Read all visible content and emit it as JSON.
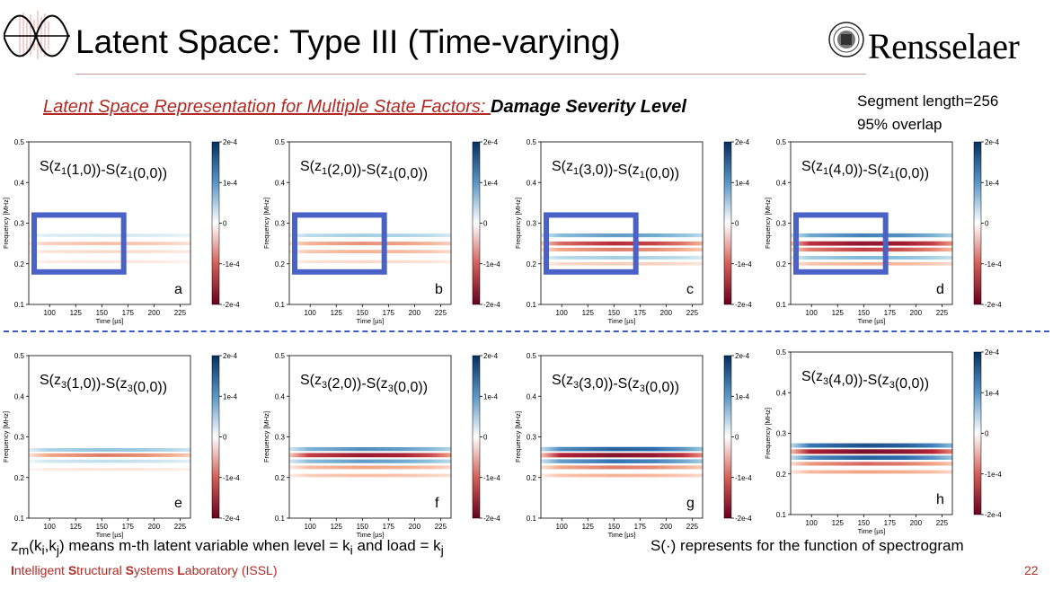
{
  "slide": {
    "title": "Latent Space: Type III (Time-varying)",
    "institution": "Rensselaer",
    "subtitle_lead": "Latent Space Representation for Multiple State Factors: ",
    "subtitle_emph": "Damage Severity Level",
    "segment_length": "Segment length=256",
    "overlap": "95% overlap",
    "footnote_left": "z_m(k_i,k_j) means m-th latent variable when level = k_i and load = k_j",
    "footnote_right": "S(·) represents for the function of spectrogram",
    "lab_name_parts": [
      {
        "bold": "I",
        "rest": "ntelligent "
      },
      {
        "bold": "S",
        "rest": "tructural "
      },
      {
        "bold": "S",
        "rest": "ystems "
      },
      {
        "bold": "L",
        "rest": "aboratory (ISSL)"
      }
    ],
    "page_number": "22"
  },
  "axes": {
    "xlabel": "Time [µs]",
    "ylabel": "Frequency [MHz]",
    "xticks": [
      "100",
      "125",
      "150",
      "175",
      "200",
      "225"
    ],
    "yticks": [
      "0.1",
      "0.2",
      "0.3",
      "0.4",
      "0.5"
    ],
    "colorbar_ticks": [
      "2e-4",
      "1e-4",
      "0",
      "-1e-4",
      "-2e-4"
    ]
  },
  "colors": {
    "accent_red": "#b32a24",
    "highlight_box": "#4a62c8",
    "divider": "#3b5bbf",
    "colormap_high": "#053061",
    "colormap_low": "#67001f"
  },
  "chart_data": [
    {
      "type": "heatmap",
      "letter": "a",
      "latent": "1",
      "level": "1",
      "highlight": true,
      "xlim": [
        80,
        235
      ],
      "ylim": [
        0.1,
        0.5
      ],
      "clim": [
        -0.0002,
        0.0002
      ],
      "bands": [
        {
          "f": 0.25,
          "amp": -0.25
        },
        {
          "f": 0.27,
          "amp": 0.15
        },
        {
          "f": 0.23,
          "amp": -0.15
        },
        {
          "f": 0.205,
          "amp": -0.1
        }
      ]
    },
    {
      "type": "heatmap",
      "letter": "b",
      "latent": "1",
      "level": "2",
      "highlight": true,
      "xlim": [
        80,
        235
      ],
      "ylim": [
        0.1,
        0.5
      ],
      "clim": [
        -0.0002,
        0.0002
      ],
      "bands": [
        {
          "f": 0.25,
          "amp": -0.4
        },
        {
          "f": 0.27,
          "amp": 0.3
        },
        {
          "f": 0.23,
          "amp": -0.3
        },
        {
          "f": 0.205,
          "amp": -0.15
        }
      ]
    },
    {
      "type": "heatmap",
      "letter": "c",
      "latent": "1",
      "level": "3",
      "highlight": true,
      "xlim": [
        80,
        235
      ],
      "ylim": [
        0.1,
        0.5
      ],
      "clim": [
        -0.0002,
        0.0002
      ],
      "bands": [
        {
          "f": 0.25,
          "amp": -0.65
        },
        {
          "f": 0.27,
          "amp": 0.5
        },
        {
          "f": 0.235,
          "amp": -0.45
        },
        {
          "f": 0.215,
          "amp": 0.3
        },
        {
          "f": 0.2,
          "amp": -0.2
        }
      ]
    },
    {
      "type": "heatmap",
      "letter": "d",
      "latent": "1",
      "level": "4",
      "highlight": true,
      "xlim": [
        80,
        235
      ],
      "ylim": [
        0.1,
        0.5
      ],
      "clim": [
        -0.0002,
        0.0002
      ],
      "bands": [
        {
          "f": 0.25,
          "amp": -0.85
        },
        {
          "f": 0.27,
          "amp": 0.6
        },
        {
          "f": 0.235,
          "amp": -0.6
        },
        {
          "f": 0.215,
          "amp": 0.4
        },
        {
          "f": 0.2,
          "amp": -0.3
        }
      ]
    },
    {
      "type": "heatmap",
      "letter": "e",
      "latent": "3",
      "level": "1",
      "highlight": false,
      "xlim": [
        80,
        235
      ],
      "ylim": [
        0.1,
        0.5
      ],
      "clim": [
        -0.0002,
        0.0002
      ],
      "bands": [
        {
          "f": 0.255,
          "amp": -0.45
        },
        {
          "f": 0.268,
          "amp": 0.35
        },
        {
          "f": 0.24,
          "amp": 0.2
        },
        {
          "f": 0.22,
          "amp": -0.1
        }
      ]
    },
    {
      "type": "heatmap",
      "letter": "f",
      "latent": "3",
      "level": "2",
      "highlight": false,
      "xlim": [
        80,
        235
      ],
      "ylim": [
        0.1,
        0.5
      ],
      "clim": [
        -0.0002,
        0.0002
      ],
      "bands": [
        {
          "f": 0.255,
          "amp": -0.8
        },
        {
          "f": 0.27,
          "amp": 0.55
        },
        {
          "f": 0.24,
          "amp": 0.5
        },
        {
          "f": 0.225,
          "amp": -0.35
        },
        {
          "f": 0.205,
          "amp": -0.25
        }
      ]
    },
    {
      "type": "heatmap",
      "letter": "g",
      "latent": "3",
      "level": "3",
      "highlight": false,
      "xlim": [
        80,
        235
      ],
      "ylim": [
        0.1,
        0.5
      ],
      "clim": [
        -0.0002,
        0.0002
      ],
      "bands": [
        {
          "f": 0.255,
          "amp": -0.9
        },
        {
          "f": 0.27,
          "amp": 0.75
        },
        {
          "f": 0.24,
          "amp": 0.65
        },
        {
          "f": 0.225,
          "amp": -0.45
        },
        {
          "f": 0.205,
          "amp": -0.3
        }
      ]
    },
    {
      "type": "heatmap",
      "letter": "h",
      "latent": "3",
      "level": "4",
      "highlight": false,
      "xlim": [
        80,
        235
      ],
      "ylim": [
        0.1,
        0.5
      ],
      "clim": [
        -0.0002,
        0.0002
      ],
      "bands": [
        {
          "f": 0.255,
          "amp": -0.95
        },
        {
          "f": 0.27,
          "amp": 0.85
        },
        {
          "f": 0.24,
          "amp": 0.75
        },
        {
          "f": 0.225,
          "amp": -0.5
        },
        {
          "f": 0.205,
          "amp": -0.35
        }
      ]
    }
  ]
}
